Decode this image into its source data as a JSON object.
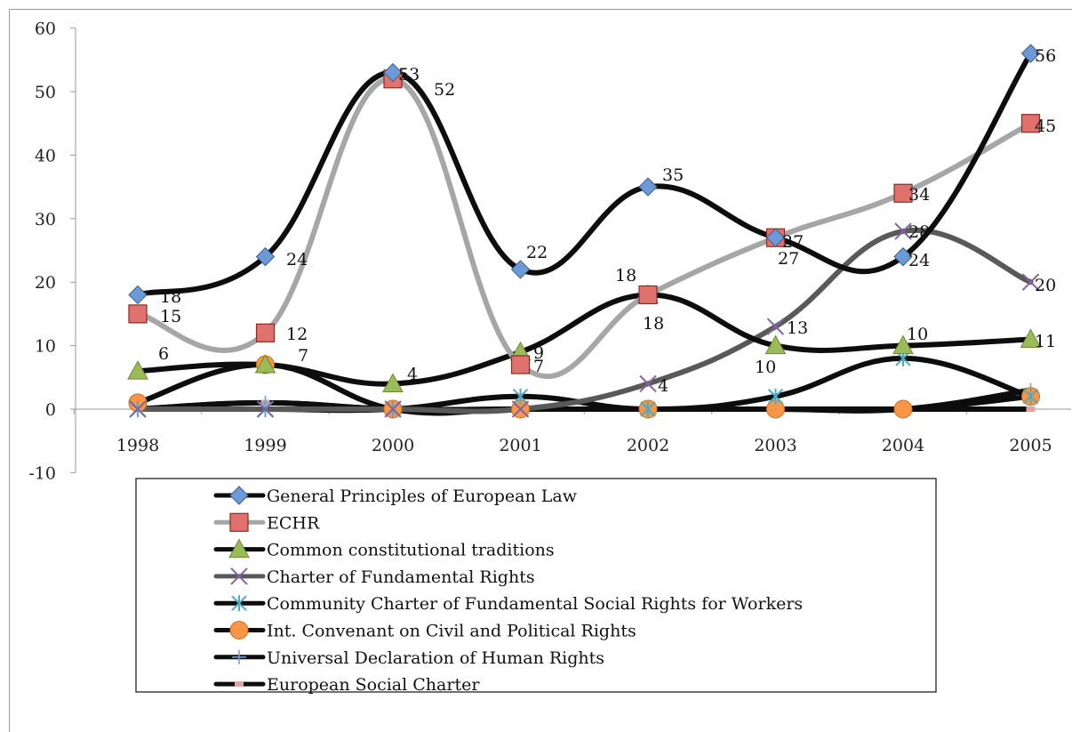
{
  "chart_data": {
    "type": "line",
    "title": "",
    "xlabel": "",
    "ylabel": "",
    "categories": [
      "1998",
      "1999",
      "2000",
      "2001",
      "2002",
      "2003",
      "2004",
      "2005"
    ],
    "ylim": [
      -10,
      60
    ],
    "yticks": [
      -10,
      0,
      10,
      20,
      30,
      40,
      50,
      60
    ],
    "grid": false,
    "legend_position": "bottom",
    "series": [
      {
        "name": "General Principles of European Law",
        "values": [
          18,
          24,
          53,
          22,
          35,
          27,
          24,
          56
        ],
        "line": "#0d0d0d",
        "marker": "diamond",
        "marker_color": "#6c9ad6",
        "labels": true
      },
      {
        "name": "ECHR",
        "values": [
          15,
          12,
          52,
          7,
          18,
          27,
          34,
          45
        ],
        "line": "#a6a6a6",
        "marker": "square",
        "marker_color": "#e0726e",
        "labels": true
      },
      {
        "name": "Common constitutional traditions",
        "values": [
          6,
          7,
          4,
          9,
          18,
          10,
          10,
          11
        ],
        "line": "#0d0d0d",
        "marker": "triangle",
        "marker_color": "#9bbb59",
        "labels": true
      },
      {
        "name": "Charter of Fundamental Rights",
        "values": [
          0,
          0,
          0,
          0,
          4,
          13,
          28,
          20
        ],
        "line": "#595959",
        "marker": "x",
        "marker_color": "#8064a2",
        "labels": true
      },
      {
        "name": "Community Charter of Fundamental Social Rights for Workers",
        "values": [
          0,
          0,
          0,
          2,
          0,
          2,
          8,
          2
        ],
        "line": "#0d0d0d",
        "marker": "star",
        "marker_color": "#4bacc6",
        "labels": false
      },
      {
        "name": "Int. Convenant on Civil and Political Rights",
        "values": [
          1,
          7,
          0,
          0,
          0,
          0,
          0,
          2
        ],
        "line": "#0d0d0d",
        "marker": "circle",
        "marker_color": "#f79646",
        "labels": false
      },
      {
        "name": "Universal Declaration of Human Rights",
        "values": [
          0,
          1,
          0,
          0,
          0,
          0,
          0,
          3
        ],
        "line": "#0d0d0d",
        "marker": "plus",
        "marker_color": "#7f9fd1",
        "labels": false
      },
      {
        "name": "European Social Charter",
        "values": [
          0,
          1,
          0,
          0,
          0,
          0,
          0,
          0
        ],
        "line": "#0d0d0d",
        "marker": "dash",
        "marker_color": "#e3a3a3",
        "labels": false
      }
    ],
    "extra_labels": [
      "6",
      "7"
    ]
  }
}
